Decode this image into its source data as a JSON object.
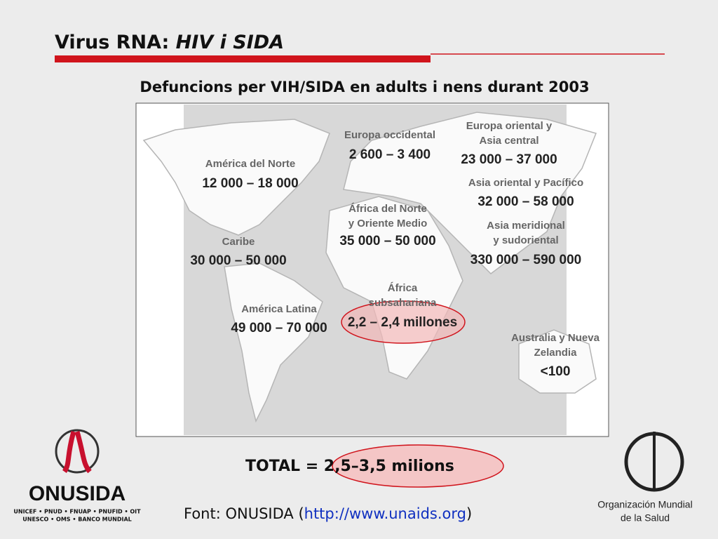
{
  "header": {
    "title": "Virus RNA: ",
    "title_italic": "HIV i SIDA",
    "subtitle": "Defuncions per VIH/SIDA en adults i nens durant 2003"
  },
  "map": {
    "regions": [
      {
        "name_lines": [
          "Europa occidental"
        ],
        "value": "2 600 – 3 400"
      },
      {
        "name_lines": [
          "Europa oriental y",
          "Asia central"
        ],
        "value": "23 000 – 37 000"
      },
      {
        "name_lines": [
          "América del Norte"
        ],
        "value": "12 000 – 18 000"
      },
      {
        "name_lines": [
          "Asia oriental y Pacífico"
        ],
        "value": "32 000 – 58 000"
      },
      {
        "name_lines": [
          "África del Norte",
          "y Oriente Medio"
        ],
        "value": "35 000 – 50 000"
      },
      {
        "name_lines": [
          "Asia meridional",
          "y sudoriental"
        ],
        "value": "330 000 – 590 000"
      },
      {
        "name_lines": [
          "Caribe"
        ],
        "value": "30 000 – 50 000"
      },
      {
        "name_lines": [
          "África",
          "subsahariana"
        ],
        "value": "2,2 – 2,4 millones"
      },
      {
        "name_lines": [
          "América Latina"
        ],
        "value": "49 000 – 70 000"
      },
      {
        "name_lines": [
          "Australia y Nueva",
          "Zelandia"
        ],
        "value": "<100"
      }
    ]
  },
  "total": "TOTAL = 2,5–3,5 milions",
  "source": {
    "prefix": "Font: ONUSIDA (",
    "link": "http://www.unaids.org",
    "suffix": ")"
  },
  "logos": {
    "onusida": {
      "name": "ONUSIDA",
      "line1": "UNICEF • PNUD • FNUAP • PNUFID • OIT",
      "line2": "UNESCO • OMS • BANCO MUNDIAL"
    },
    "who": {
      "line1": "Organización Mundial",
      "line2": "de la Salud"
    }
  }
}
